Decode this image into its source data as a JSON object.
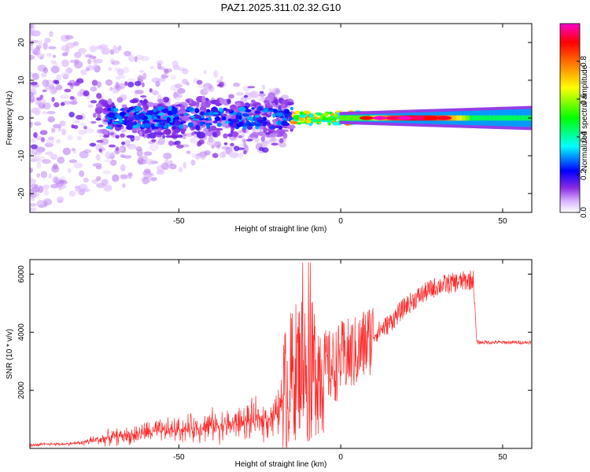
{
  "title": "PAZ1.2025.311.02.32.G10",
  "colors": {
    "line": "#ff2a2a",
    "colormap": [
      "#ffffff",
      "#d9b3ff",
      "#8a2be2",
      "#0000ff",
      "#00ffff",
      "#00ff00",
      "#ffff00",
      "#ff8000",
      "#ff0000",
      "#ff00cc"
    ]
  },
  "chart_data": [
    {
      "type": "heatmap",
      "xlabel": "Height of straight line (km)",
      "ylabel": "Frequency (Hz)",
      "xlim": [
        -96,
        59
      ],
      "ylim": [
        -25,
        25
      ],
      "xticks": [
        -50,
        0,
        50
      ],
      "yticks": [
        -20,
        -10,
        0,
        10,
        20
      ],
      "colorbar": {
        "label": "Normalized spectral amplitude",
        "range": [
          0,
          1
        ],
        "ticks": [
          0.0,
          0.2,
          0.4,
          0.6,
          0.8
        ]
      },
      "description_of_signal": {
        "scattered_noise_x_range": [
          -96,
          -20
        ],
        "band_center_hz": 0,
        "strongest_x_range": [
          5,
          40
        ]
      }
    },
    {
      "type": "line",
      "xlabel": "Height of straight line (km)",
      "ylabel": "SNR (10 * v/v)",
      "xlim": [
        -96,
        59
      ],
      "ylim": [
        0,
        6500
      ],
      "xticks": [
        -50,
        0,
        50
      ],
      "yticks": [
        2000,
        4000,
        6000
      ],
      "series": [
        {
          "x": [
            -96,
            -90,
            -85,
            -80,
            -75,
            -70,
            -65,
            -60,
            -55,
            -50,
            -45,
            -40,
            -35,
            -30,
            -25,
            -20,
            -18,
            -15,
            -12,
            -10,
            -8,
            -5,
            -2,
            0,
            5,
            10,
            15,
            20,
            25,
            30,
            35,
            40,
            41,
            42,
            45,
            50,
            55,
            59
          ],
          "y": [
            100,
            150,
            150,
            200,
            300,
            400,
            450,
            550,
            600,
            650,
            700,
            800,
            800,
            900,
            1000,
            1100,
            1600,
            2500,
            3000,
            2500,
            2800,
            2800,
            2800,
            3100,
            3300,
            3900,
            4300,
            4900,
            5300,
            5600,
            5700,
            5800,
            5800,
            3650,
            3650,
            3650,
            3650,
            3650
          ]
        }
      ]
    }
  ]
}
